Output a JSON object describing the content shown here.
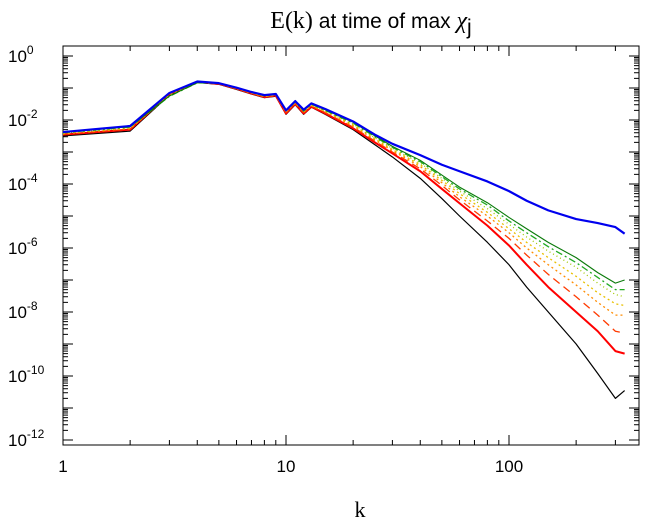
{
  "chart_data": {
    "type": "line",
    "title": {
      "prefix": "E(k)",
      "middle": " at time of max ",
      "symbol": "χ",
      "subscript": "j"
    },
    "xlabel": "k",
    "ylabel": "",
    "xscale": "log",
    "yscale": "log",
    "xlim": [
      1,
      370
    ],
    "ylim": [
      1e-12,
      1
    ],
    "grid": false,
    "x_ticks": [
      {
        "value": 1,
        "label": "1"
      },
      {
        "value": 10,
        "label": "10"
      },
      {
        "value": 100,
        "label": "100"
      }
    ],
    "y_ticks": [
      {
        "value": 1,
        "base": "10",
        "exp": "0"
      },
      {
        "value": 0.01,
        "base": "10",
        "exp": "-2"
      },
      {
        "value": 0.0001,
        "base": "10",
        "exp": "-4"
      },
      {
        "value": 1e-06,
        "base": "10",
        "exp": "-6"
      },
      {
        "value": 1e-08,
        "base": "10",
        "exp": "-8"
      },
      {
        "value": 1e-10,
        "base": "10",
        "exp": "-10"
      },
      {
        "value": 1e-12,
        "base": "10",
        "exp": "-12"
      }
    ],
    "x": [
      1,
      2,
      3,
      4,
      5,
      6,
      7,
      8,
      9,
      10,
      11,
      12,
      13,
      15,
      20,
      25,
      30,
      40,
      50,
      60,
      80,
      100,
      120,
      150,
      200,
      250,
      300,
      330
    ],
    "series": [
      {
        "color": "#000000",
        "dash": "solid",
        "width": 1.2,
        "values": [
          0.0032,
          0.0045,
          0.06,
          0.15,
          0.13,
          0.09,
          0.065,
          0.05,
          0.055,
          0.015,
          0.03,
          0.015,
          0.025,
          0.015,
          0.005,
          0.0017,
          0.0007,
          0.00015,
          3.5e-05,
          1e-05,
          1.5e-06,
          3e-07,
          6e-08,
          1e-08,
          1e-09,
          1.2e-10,
          2e-11,
          3.5e-11
        ]
      },
      {
        "color": "#ff0000",
        "dash": "solid",
        "width": 2.0,
        "values": [
          0.0035,
          0.005,
          0.065,
          0.155,
          0.135,
          0.095,
          0.068,
          0.052,
          0.058,
          0.016,
          0.032,
          0.016,
          0.026,
          0.016,
          0.0055,
          0.002,
          0.0009,
          0.00025,
          7e-05,
          2.5e-05,
          5e-06,
          1.2e-06,
          3e-07,
          6e-08,
          1e-08,
          2.5e-09,
          6e-10,
          5e-10
        ]
      },
      {
        "color": "#ff3a00",
        "dash": "8,5",
        "width": 1.3,
        "values": [
          0.0036,
          0.0052,
          0.066,
          0.156,
          0.136,
          0.096,
          0.069,
          0.053,
          0.059,
          0.017,
          0.033,
          0.017,
          0.027,
          0.017,
          0.006,
          0.0022,
          0.001,
          0.0003,
          9e-05,
          3.2e-05,
          7e-06,
          2e-06,
          6e-07,
          1.5e-07,
          3e-08,
          8e-09,
          2.5e-09,
          2.2e-09
        ]
      },
      {
        "color": "#ff8c00",
        "dash": "2,3",
        "width": 1.3,
        "values": [
          0.0037,
          0.0054,
          0.062,
          0.152,
          0.137,
          0.097,
          0.07,
          0.054,
          0.06,
          0.018,
          0.034,
          0.018,
          0.028,
          0.018,
          0.0065,
          0.0024,
          0.0011,
          0.00035,
          0.00011,
          4e-05,
          1e-05,
          3e-06,
          1e-06,
          3e-07,
          7e-08,
          2e-08,
          8e-09,
          8e-09
        ]
      },
      {
        "color": "#e8c000",
        "dash": "2,3",
        "width": 1.3,
        "values": [
          0.0038,
          0.0056,
          0.058,
          0.148,
          0.138,
          0.098,
          0.071,
          0.055,
          0.061,
          0.018,
          0.035,
          0.018,
          0.029,
          0.019,
          0.007,
          0.0026,
          0.0012,
          0.0004,
          0.00013,
          5e-05,
          1.3e-05,
          4e-06,
          1.5e-06,
          5e-07,
          1.3e-07,
          4e-08,
          1.8e-08,
          1.6e-08
        ]
      },
      {
        "color": "#9ec800",
        "dash": "1,3",
        "width": 1.3,
        "values": [
          0.0039,
          0.0058,
          0.056,
          0.146,
          0.139,
          0.099,
          0.072,
          0.056,
          0.062,
          0.019,
          0.036,
          0.019,
          0.03,
          0.019,
          0.0075,
          0.0028,
          0.0013,
          0.00045,
          0.00015,
          6e-05,
          1.7e-05,
          5.5e-06,
          2.2e-06,
          8e-07,
          2.5e-07,
          8e-08,
          3.5e-08,
          3e-08
        ]
      },
      {
        "color": "#22aa22",
        "dash": "7,3,2,3",
        "width": 1.3,
        "values": [
          0.004,
          0.006,
          0.055,
          0.145,
          0.14,
          0.1,
          0.073,
          0.057,
          0.063,
          0.019,
          0.037,
          0.019,
          0.031,
          0.02,
          0.008,
          0.003,
          0.0014,
          0.0005,
          0.00017,
          7e-05,
          2.2e-05,
          7e-06,
          3e-06,
          1.1e-06,
          3.5e-07,
          1.2e-07,
          5e-08,
          5e-08
        ]
      },
      {
        "color": "#0a7a0a",
        "dash": "solid",
        "width": 1.1,
        "values": [
          0.0041,
          0.0062,
          0.056,
          0.146,
          0.141,
          0.101,
          0.074,
          0.058,
          0.064,
          0.02,
          0.038,
          0.02,
          0.032,
          0.021,
          0.0085,
          0.0032,
          0.0015,
          0.00055,
          0.00019,
          8e-05,
          2.6e-05,
          9e-06,
          4e-06,
          1.5e-06,
          5e-07,
          1.7e-07,
          8e-08,
          1e-07
        ]
      },
      {
        "color": "#0000ee",
        "dash": "solid",
        "width": 2.2,
        "values": [
          0.0042,
          0.0065,
          0.07,
          0.16,
          0.142,
          0.102,
          0.075,
          0.06,
          0.065,
          0.02,
          0.039,
          0.021,
          0.033,
          0.022,
          0.009,
          0.0035,
          0.0018,
          0.0008,
          0.0004,
          0.00025,
          0.00012,
          6e-05,
          3e-05,
          1.5e-05,
          8e-06,
          6e-06,
          4.5e-06,
          2.8e-06
        ]
      }
    ]
  }
}
